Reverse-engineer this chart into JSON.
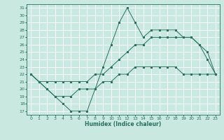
{
  "xlabel": "Humidex (Indice chaleur)",
  "bg_color": "#c8e8e0",
  "grid_color": "#ffffff",
  "line_color": "#2a7060",
  "xmin": -0.5,
  "xmax": 23.5,
  "ymin": 16.5,
  "ymax": 31.5,
  "line1_x": [
    0,
    1,
    2,
    3,
    4,
    5,
    6,
    7,
    8,
    9,
    10,
    11,
    12,
    13,
    14,
    15,
    16,
    17,
    18,
    19,
    20,
    21,
    22,
    23
  ],
  "line1_y": [
    22,
    21,
    20,
    19,
    18,
    17,
    17,
    17,
    20,
    23,
    26,
    29,
    31,
    29,
    27,
    28,
    28,
    28,
    28,
    27,
    27,
    26,
    24,
    22
  ],
  "line2_x": [
    0,
    1,
    2,
    3,
    4,
    5,
    6,
    7,
    8,
    9,
    10,
    11,
    12,
    13,
    14,
    15,
    16,
    17,
    18,
    19,
    20,
    21,
    22,
    23
  ],
  "line2_y": [
    22,
    21,
    21,
    21,
    21,
    21,
    21,
    21,
    22,
    22,
    23,
    24,
    25,
    26,
    26,
    27,
    27,
    27,
    27,
    27,
    27,
    26,
    25,
    22
  ],
  "line3_x": [
    0,
    1,
    2,
    3,
    4,
    5,
    6,
    7,
    8,
    9,
    10,
    11,
    12,
    13,
    14,
    15,
    16,
    17,
    18,
    19,
    20,
    21,
    22,
    23
  ],
  "line3_y": [
    22,
    21,
    20,
    19,
    19,
    19,
    20,
    20,
    20,
    21,
    21,
    22,
    22,
    23,
    23,
    23,
    23,
    23,
    23,
    22,
    22,
    22,
    22,
    22
  ],
  "yticks": [
    17,
    18,
    19,
    20,
    21,
    22,
    23,
    24,
    25,
    26,
    27,
    28,
    29,
    30,
    31
  ],
  "xticks": [
    0,
    1,
    2,
    3,
    4,
    5,
    6,
    7,
    8,
    9,
    10,
    11,
    12,
    13,
    14,
    15,
    16,
    17,
    18,
    19,
    20,
    21,
    22,
    23
  ],
  "figwidth": 3.2,
  "figheight": 2.0,
  "dpi": 100
}
